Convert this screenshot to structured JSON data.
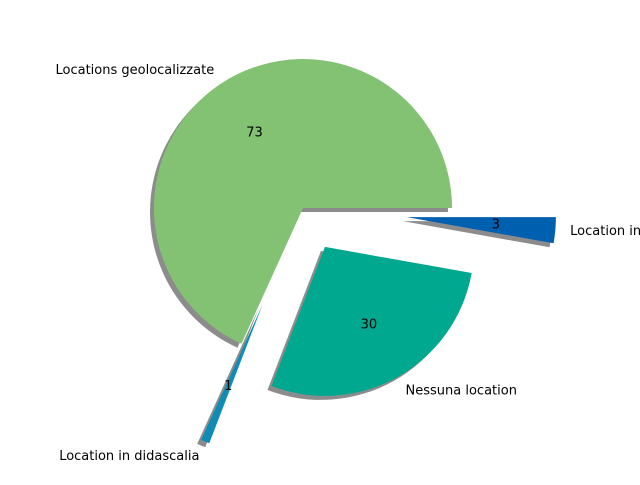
{
  "chart_data": {
    "type": "pie",
    "title": "",
    "slices": [
      {
        "label": "Locations geolocalizzate",
        "value": 73,
        "color": "#84c273",
        "explode": 0.0
      },
      {
        "label": "Location in didascalia",
        "value": 1,
        "color": "#0f8cb5",
        "explode": 0.7
      },
      {
        "label": "Nessuna location",
        "value": 30,
        "color": "#00a88f",
        "explode": 0.3
      },
      {
        "label": "Location in bio",
        "value": 3,
        "color": "#0060b0",
        "explode": 0.7
      }
    ],
    "shadow": true,
    "autopct_format": "count",
    "start_angle": 0,
    "counterclock": true
  }
}
